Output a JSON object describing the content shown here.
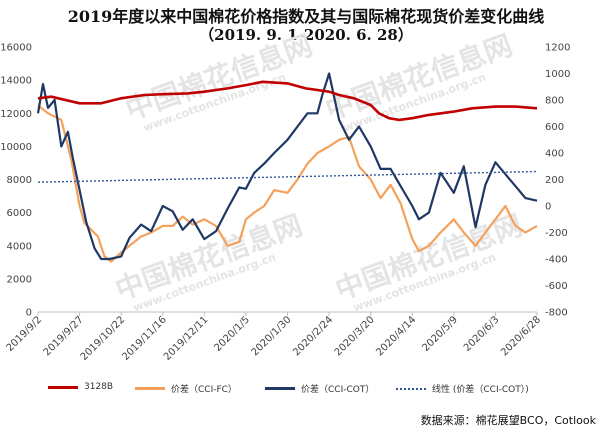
{
  "title": "2019年度以来中国棉花价格指数及其与国际棉花现货价差变化曲线",
  "subtitle": "（2019. 9. 1-2020. 6. 28）",
  "source": "数据来源：棉花展望BCO，Cotlook",
  "watermark": {
    "brand": "中国棉花信息网",
    "url": "www.cottonchina.org.cn"
  },
  "colors": {
    "s3128b": "#C00000",
    "cci_fc": "#F4A15C",
    "cci_cot": "#1F3864",
    "trend": "#2E5597"
  },
  "chart_data": {
    "type": "line",
    "x_tick_labels": [
      "2019/9/2",
      "2019/9/27",
      "2019/10/22",
      "2019/11/16",
      "2019/12/11",
      "2020/1/5",
      "2020/1/30",
      "2020/2/24",
      "2020/3/20",
      "2020/4/14",
      "2020/5/9",
      "2020/6/3",
      "2020/6/28"
    ],
    "x_range": [
      "2019-09-02",
      "2020-06-28"
    ],
    "y_left": {
      "ticks": [
        0,
        2000,
        4000,
        6000,
        8000,
        10000,
        12000,
        14000,
        16000
      ],
      "labels": [
        "0",
        "2000",
        "4000",
        "6000",
        "8000",
        "10000",
        "12000",
        "14000",
        "16000"
      ],
      "lim": [
        0,
        16000
      ]
    },
    "y_right": {
      "ticks": [
        -800,
        -600,
        -400,
        -200,
        0,
        200,
        400,
        600,
        800,
        1000,
        1200
      ],
      "labels": [
        "-800",
        "-600",
        "-400",
        "-200",
        "0",
        "200",
        "400",
        "600",
        "800",
        "1000",
        "1200"
      ],
      "lim": [
        -800,
        1200
      ]
    },
    "legend": [
      "3128B",
      "价差（CCI-FC）",
      "价差（CCI-COT）",
      "线性 (价差（CCI-COT）)"
    ],
    "legend_position": "bottom",
    "series": [
      {
        "name": "3128B",
        "axis": "left",
        "color": "#C00000",
        "x": [
          "2019-09-02",
          "2019-09-10",
          "2019-09-27",
          "2019-10-10",
          "2019-10-22",
          "2019-11-05",
          "2019-11-16",
          "2019-12-01",
          "2019-12-11",
          "2019-12-25",
          "2020-01-05",
          "2020-01-15",
          "2020-01-30",
          "2020-02-10",
          "2020-02-24",
          "2020-03-01",
          "2020-03-10",
          "2020-03-20",
          "2020-03-25",
          "2020-03-31",
          "2020-04-06",
          "2020-04-14",
          "2020-04-24",
          "2020-05-09",
          "2020-05-20",
          "2020-06-03",
          "2020-06-15",
          "2020-06-28"
        ],
        "y": [
          12900,
          13000,
          12600,
          12600,
          12900,
          13100,
          13150,
          13200,
          13300,
          13500,
          13700,
          13900,
          13800,
          13500,
          13300,
          13100,
          12900,
          12500,
          12000,
          11700,
          11600,
          11700,
          11900,
          12100,
          12300,
          12400,
          12400,
          12300
        ]
      },
      {
        "name": "价差（CCI-FC）",
        "axis": "right",
        "color": "#F4A15C",
        "x": [
          "2019-09-02",
          "2019-09-08",
          "2019-09-16",
          "2019-09-22",
          "2019-09-27",
          "2019-09-30",
          "2019-10-08",
          "2019-10-12",
          "2019-10-16",
          "2019-10-22",
          "2019-10-27",
          "2019-11-03",
          "2019-11-09",
          "2019-11-16",
          "2019-11-22",
          "2019-11-28",
          "2019-12-04",
          "2019-12-11",
          "2019-12-18",
          "2019-12-25",
          "2020-01-01",
          "2020-01-05",
          "2020-01-10",
          "2020-01-16",
          "2020-01-22",
          "2020-01-30",
          "2020-02-05",
          "2020-02-11",
          "2020-02-17",
          "2020-02-24",
          "2020-03-01",
          "2020-03-07",
          "2020-03-13",
          "2020-03-20",
          "2020-03-26",
          "2020-04-01",
          "2020-04-07",
          "2020-04-14",
          "2020-04-18",
          "2020-04-24",
          "2020-05-01",
          "2020-05-09",
          "2020-05-15",
          "2020-05-22",
          "2020-05-28",
          "2020-06-03",
          "2020-06-09",
          "2020-06-15",
          "2020-06-21",
          "2020-06-28"
        ],
        "y": [
          760,
          700,
          650,
          350,
          0,
          -130,
          -230,
          -380,
          -420,
          -350,
          -300,
          -230,
          -200,
          -150,
          -150,
          -80,
          -140,
          -100,
          -150,
          -300,
          -270,
          -100,
          -50,
          0,
          120,
          100,
          200,
          320,
          400,
          450,
          500,
          520,
          300,
          200,
          60,
          160,
          20,
          -250,
          -340,
          -300,
          -200,
          -100,
          -200,
          -300,
          -200,
          -100,
          0,
          -150,
          -200,
          -150
        ]
      },
      {
        "name": "价差（CCI-COT）",
        "axis": "right",
        "color": "#1F3864",
        "x": [
          "2019-09-02",
          "2019-09-05",
          "2019-09-08",
          "2019-09-12",
          "2019-09-16",
          "2019-09-20",
          "2019-09-23",
          "2019-09-27",
          "2019-10-01",
          "2019-10-06",
          "2019-10-10",
          "2019-10-15",
          "2019-10-22",
          "2019-10-27",
          "2019-11-03",
          "2019-11-09",
          "2019-11-16",
          "2019-11-22",
          "2019-11-28",
          "2019-12-04",
          "2019-12-11",
          "2019-12-18",
          "2019-12-25",
          "2020-01-01",
          "2020-01-05",
          "2020-01-10",
          "2020-01-16",
          "2020-01-22",
          "2020-01-30",
          "2020-02-05",
          "2020-02-11",
          "2020-02-17",
          "2020-02-20",
          "2020-02-24",
          "2020-03-01",
          "2020-03-07",
          "2020-03-13",
          "2020-03-20",
          "2020-03-26",
          "2020-04-01",
          "2020-04-07",
          "2020-04-14",
          "2020-04-18",
          "2020-04-24",
          "2020-05-01",
          "2020-05-09",
          "2020-05-15",
          "2020-05-22",
          "2020-05-28",
          "2020-06-03",
          "2020-06-09",
          "2020-06-15",
          "2020-06-21",
          "2020-06-28"
        ],
        "y": [
          700,
          920,
          740,
          800,
          450,
          560,
          360,
          120,
          -120,
          -320,
          -400,
          -400,
          -380,
          -240,
          -140,
          -190,
          0,
          -40,
          -180,
          -100,
          -250,
          -190,
          -20,
          140,
          130,
          250,
          320,
          400,
          500,
          600,
          700,
          700,
          840,
          1000,
          650,
          500,
          600,
          450,
          280,
          280,
          150,
          0,
          -100,
          -50,
          250,
          100,
          300,
          -160,
          160,
          330,
          240,
          150,
          60,
          40
        ]
      },
      {
        "name": "线性 (价差（CCI-COT）)",
        "axis": "right",
        "color": "#2E5597",
        "dashed": true,
        "x": [
          "2019-09-02",
          "2020-06-28"
        ],
        "y": [
          180,
          260
        ]
      }
    ]
  }
}
